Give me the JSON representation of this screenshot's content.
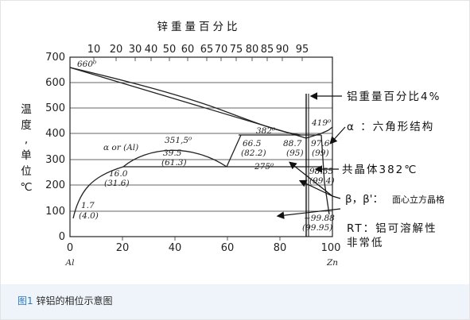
{
  "top_axis": {
    "title": "锌重量百分比",
    "ticks": [
      "10",
      "20",
      "30",
      "40",
      "50",
      "60",
      "65",
      "70",
      "75",
      "80",
      "85",
      "90",
      "95"
    ]
  },
  "y_axis": {
    "title_chars": [
      "温",
      "度",
      ",",
      "单",
      "位",
      "℃"
    ],
    "ticks": [
      "700",
      "600",
      "500",
      "400",
      "300",
      "200",
      "100",
      "0"
    ]
  },
  "x_axis": {
    "ticks": [
      "0",
      "20",
      "40",
      "60",
      "80",
      "100"
    ],
    "left_label": "Al",
    "right_label": "Zn"
  },
  "phase_labels": {
    "t660": "660⁰",
    "t419": "419⁰",
    "t382": "382⁰",
    "t275": "275⁰",
    "t351": "351,5⁰",
    "alpha_region": "α or (Al)",
    "c39_5": "39.5",
    "c61_3": "(61.3)",
    "c16_0": "16.0",
    "c31_6": "(31.6)",
    "c1_7": "1.7",
    "c4_0": "(4.0)",
    "c66_5": "66.5",
    "c82_2": "(82.2)",
    "c88_7": "88.7",
    "c95": "(95)",
    "c97_6": "97.6",
    "c99": "(99)",
    "c98_55": "98.55",
    "c99_4": "(99.4)",
    "c99_88": "~99.88",
    "c99_95": "(99.95)"
  },
  "annotations": {
    "zn4": "铝重量百分比4%",
    "alpha": "α  ：六角形结构",
    "eutectic": "共晶体382℃",
    "beta_prefix": "β，β'：",
    "beta_suffix": "面心立方晶格",
    "rt_line1": "RT：铝可溶解性",
    "rt_line2": "非常低"
  },
  "caption": {
    "figure": "图1",
    "text": " 锌铝的相位示意图"
  }
}
